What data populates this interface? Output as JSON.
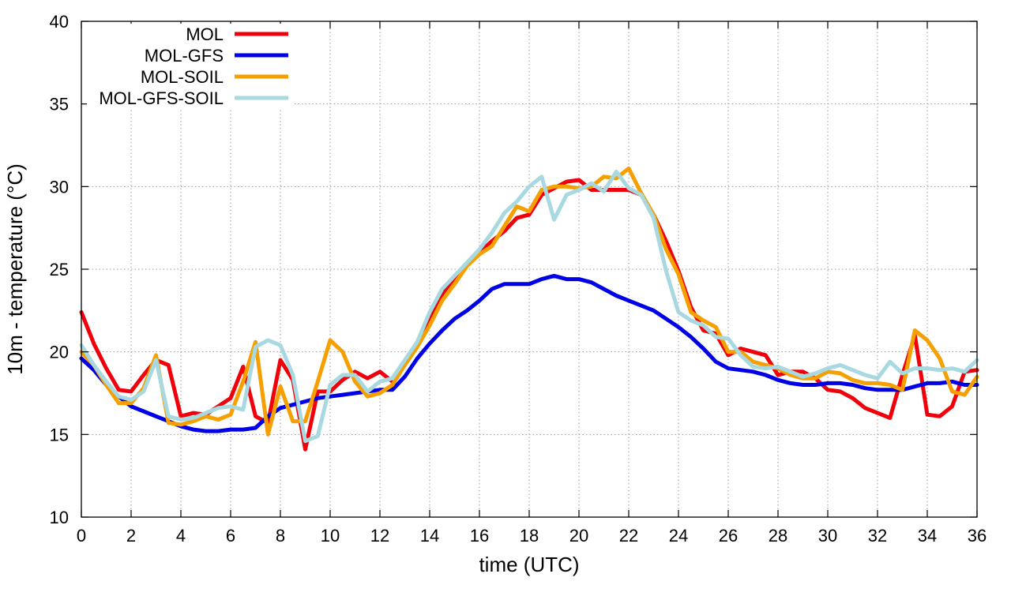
{
  "chart_data": {
    "type": "line",
    "title": "",
    "xlabel": "time (UTC)",
    "ylabel": "10m - temperature (°C)",
    "xlim": [
      0,
      36
    ],
    "ylim": [
      10,
      40
    ],
    "xticks": [
      "0",
      "2",
      "4",
      "6",
      "8",
      "10",
      "12",
      "14",
      "16",
      "18",
      "20",
      "22",
      "24",
      "26",
      "28",
      "30",
      "32",
      "34",
      "36"
    ],
    "yticks": [
      "10",
      "15",
      "20",
      "25",
      "30",
      "35",
      "40"
    ],
    "grid": true,
    "legend_position": "top-left",
    "series": [
      {
        "name": "MOL",
        "color": "#f0000a",
        "x": [
          0,
          0.5,
          1,
          1.5,
          2,
          2.5,
          3,
          3.5,
          4,
          4.5,
          5,
          5.5,
          6,
          6.5,
          7,
          7.5,
          8,
          8.5,
          9,
          9.5,
          10,
          10.5,
          11,
          11.5,
          12,
          12.5,
          13,
          13.5,
          14,
          14.5,
          15,
          15.5,
          16,
          16.5,
          17,
          17.5,
          18,
          18.5,
          19,
          19.5,
          20,
          20.5,
          21,
          21.5,
          22,
          22.5,
          23,
          23.5,
          24,
          24.5,
          25,
          25.5,
          26,
          26.5,
          27,
          27.5,
          28,
          28.5,
          29,
          29.5,
          30,
          30.5,
          31,
          31.5,
          32,
          32.5,
          33,
          33.5,
          34,
          34.5,
          35,
          35.5,
          36
        ],
        "values": [
          22.4,
          20.5,
          19,
          17.7,
          17.6,
          18.6,
          19.5,
          19.2,
          16.1,
          16.3,
          16.2,
          16.7,
          17.2,
          19.1,
          16.1,
          15.7,
          19.5,
          18.3,
          14.1,
          17.6,
          17.6,
          18.3,
          18.8,
          18.4,
          18.8,
          18.2,
          19.4,
          20.5,
          21.9,
          23.5,
          24.5,
          25.3,
          26,
          26.7,
          27.3,
          28.1,
          28.3,
          29.5,
          29.9,
          30.3,
          30.4,
          29.8,
          29.8,
          29.8,
          29.8,
          29.5,
          28.3,
          26.7,
          24.9,
          22.7,
          21.3,
          21.1,
          19.8,
          20.2,
          20,
          19.8,
          18.6,
          18.8,
          18.8,
          18.4,
          17.7,
          17.6,
          17.2,
          16.6,
          16.3,
          16,
          18.6,
          21,
          16.2,
          16.1,
          16.7,
          18.8,
          18.9
        ]
      },
      {
        "name": "MOL-GFS",
        "color": "#0000e6",
        "x": [
          0,
          0.5,
          1,
          1.5,
          2,
          2.5,
          3,
          3.5,
          4,
          4.5,
          5,
          5.5,
          6,
          6.5,
          7,
          7.5,
          8,
          8.5,
          9,
          9.5,
          10,
          10.5,
          11,
          11.5,
          12,
          12.5,
          13,
          13.5,
          14,
          14.5,
          15,
          15.5,
          16,
          16.5,
          17,
          17.5,
          18,
          18.5,
          19,
          19.5,
          20,
          20.5,
          21,
          21.5,
          22,
          22.5,
          23,
          23.5,
          24,
          24.5,
          25,
          25.5,
          26,
          26.5,
          27,
          27.5,
          28,
          28.5,
          29,
          29.5,
          30,
          30.5,
          31,
          31.5,
          32,
          32.5,
          33,
          33.5,
          34,
          34.5,
          35,
          35.5,
          36
        ],
        "values": [
          19.6,
          18.9,
          18,
          17.3,
          16.7,
          16.4,
          16.1,
          15.8,
          15.5,
          15.3,
          15.2,
          15.2,
          15.3,
          15.3,
          15.4,
          16.1,
          16.6,
          16.8,
          17,
          17.2,
          17.3,
          17.4,
          17.5,
          17.6,
          17.7,
          17.7,
          18.5,
          19.6,
          20.5,
          21.3,
          22,
          22.5,
          23.1,
          23.8,
          24.1,
          24.1,
          24.1,
          24.4,
          24.6,
          24.4,
          24.4,
          24.2,
          23.8,
          23.4,
          23.1,
          22.8,
          22.5,
          22,
          21.5,
          20.9,
          20.2,
          19.4,
          19,
          18.9,
          18.8,
          18.6,
          18.3,
          18.1,
          18,
          18,
          18.1,
          18.1,
          18,
          17.8,
          17.7,
          17.7,
          17.7,
          17.9,
          18.1,
          18.1,
          18.2,
          18,
          18
        ]
      },
      {
        "name": "MOL-SOIL",
        "color": "#f5a000",
        "x": [
          0,
          0.5,
          1,
          1.5,
          2,
          2.5,
          3,
          3.5,
          4,
          4.5,
          5,
          5.5,
          6,
          6.5,
          7,
          7.5,
          8,
          8.5,
          9,
          9.5,
          10,
          10.5,
          11,
          11.5,
          12,
          12.5,
          13,
          13.5,
          14,
          14.5,
          15,
          15.5,
          16,
          16.5,
          17,
          17.5,
          18,
          18.5,
          19,
          19.5,
          20,
          20.5,
          21,
          21.5,
          22,
          22.5,
          23,
          23.5,
          24,
          24.5,
          25,
          25.5,
          26,
          26.5,
          27,
          27.5,
          28,
          28.5,
          29,
          29.5,
          30,
          30.5,
          31,
          31.5,
          32,
          32.5,
          33,
          33.5,
          34,
          34.5,
          35,
          35.5,
          36
        ],
        "values": [
          20,
          19.2,
          18,
          16.9,
          16.9,
          17.8,
          19.8,
          15.7,
          15.6,
          15.8,
          16.1,
          15.9,
          16.2,
          18.2,
          20.6,
          15,
          17.9,
          15.8,
          15.8,
          18.2,
          20.7,
          20,
          18.2,
          17.3,
          17.5,
          18,
          19.2,
          20.3,
          21.6,
          23.1,
          24.1,
          25.2,
          25.9,
          26.4,
          27.6,
          28.8,
          28.5,
          29.8,
          30,
          30,
          29.9,
          30,
          30.6,
          30.5,
          31.1,
          29.6,
          28.3,
          26.2,
          24.7,
          22.4,
          21.9,
          21.5,
          20,
          20,
          19.4,
          19.2,
          19,
          18.6,
          18.4,
          18.4,
          18.8,
          18.7,
          18.3,
          18.1,
          18.1,
          18,
          17.7,
          21.3,
          20.7,
          19.6,
          17.6,
          17.4,
          18.5
        ]
      },
      {
        "name": "MOL-GFS-SOIL",
        "color": "#a8d8e0",
        "x": [
          0,
          0.5,
          1,
          1.5,
          2,
          2.5,
          3,
          3.5,
          4,
          4.5,
          5,
          5.5,
          6,
          6.5,
          7,
          7.5,
          8,
          8.5,
          9,
          9.5,
          10,
          10.5,
          11,
          11.5,
          12,
          12.5,
          13,
          13.5,
          14,
          14.5,
          15,
          15.5,
          16,
          16.5,
          17,
          17.5,
          18,
          18.5,
          19,
          19.5,
          20,
          20.5,
          21,
          21.5,
          22,
          22.5,
          23,
          23.5,
          24,
          24.5,
          25,
          25.5,
          26,
          26.5,
          27,
          27.5,
          28,
          28.5,
          29,
          29.5,
          30,
          30.5,
          31,
          31.5,
          32,
          32.5,
          33,
          33.5,
          34,
          34.5,
          35,
          35.5,
          36
        ],
        "values": [
          20.4,
          19.2,
          18.2,
          17.3,
          17.1,
          17.6,
          19.5,
          16.1,
          15.9,
          16,
          16.3,
          16.6,
          16.7,
          16.5,
          20.3,
          20.7,
          20.4,
          18.6,
          14.6,
          14.9,
          18,
          18.6,
          18.6,
          17.6,
          18.2,
          18.4,
          19.5,
          20.6,
          22.4,
          23.8,
          24.6,
          25.4,
          26.2,
          27.2,
          28.4,
          29.1,
          30,
          30.6,
          28,
          29.5,
          29.8,
          30.2,
          29.7,
          30.9,
          29.9,
          29.5,
          28.1,
          24.9,
          22.4,
          21.9,
          21.6,
          20.9,
          20.8,
          19.8,
          19.1,
          19,
          19.1,
          18.8,
          18.5,
          18.7,
          19,
          19.2,
          18.9,
          18.6,
          18.4,
          19.4,
          18.7,
          19,
          19,
          18.9,
          19,
          18.8,
          19.5
        ]
      }
    ]
  }
}
